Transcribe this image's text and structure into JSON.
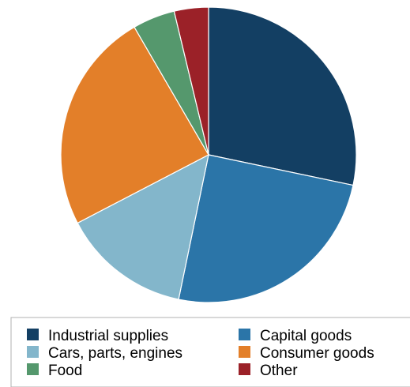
{
  "chart_data": {
    "type": "pie",
    "title": "",
    "slices": [
      {
        "label": "Industrial supplies",
        "value": 28.7,
        "color": "#133f63"
      },
      {
        "label": "Capital goods",
        "value": 25.3,
        "color": "#2b75a8"
      },
      {
        "label": "Cars, parts, engines",
        "value": 14.3,
        "color": "#83b6cb"
      },
      {
        "label": "Consumer goods",
        "value": 24.6,
        "color": "#e37f29"
      },
      {
        "label": "Food",
        "value": 4.7,
        "color": "#55986d"
      },
      {
        "label": "Other",
        "value": 3.8,
        "color": "#9b2128"
      }
    ],
    "start_angle": "12 o'clock",
    "direction": "clockwise",
    "legend": {
      "placement": "bottom",
      "columns": 2,
      "order": [
        "Industrial supplies",
        "Capital goods",
        "Cars, parts, engines",
        "Consumer goods",
        "Food",
        "Other"
      ]
    }
  }
}
